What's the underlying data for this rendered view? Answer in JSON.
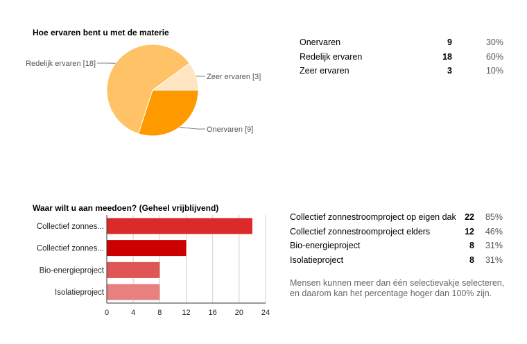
{
  "chart_data": [
    {
      "type": "pie",
      "title": "Hoe ervaren bent u met de materie",
      "slices": [
        {
          "label": "Onervaren [9]",
          "value": 9,
          "color": "#ff9900"
        },
        {
          "label": "Redelijk ervaren [18]",
          "value": 18,
          "color": "#ffc266"
        },
        {
          "label": "Zeer ervaren [3]",
          "value": 3,
          "color": "#ffe5c2"
        }
      ],
      "summary": [
        {
          "label": "Onervaren",
          "count": "9",
          "percent": "30%"
        },
        {
          "label": "Redelijk ervaren",
          "count": "18",
          "percent": "60%"
        },
        {
          "label": "Zeer ervaren",
          "count": "3",
          "percent": "10%"
        }
      ]
    },
    {
      "type": "bar",
      "orientation": "horizontal",
      "title": "Waar wilt u aan meedoen? (Geheel vrijblijvend)",
      "categories": [
        "Collectief zonnes...",
        "Collectief zonnes...",
        "Bio-energieproject",
        "Isolatieproject"
      ],
      "values": [
        22,
        12,
        8,
        8
      ],
      "colors": [
        "#dc2a2a",
        "#cc0000",
        "#e05555",
        "#e88080"
      ],
      "xlim": [
        0,
        24
      ],
      "xticks": [
        "0",
        "4",
        "8",
        "12",
        "16",
        "20",
        "24"
      ],
      "summary": [
        {
          "label": "Collectief zonnestroomproject op eigen dak",
          "count": "22",
          "percent": "85%"
        },
        {
          "label": "Collectief zonnestroomproject elders",
          "count": "12",
          "percent": "46%"
        },
        {
          "label": "Bio-energieproject",
          "count": "8",
          "percent": "31%"
        },
        {
          "label": "Isolatieproject",
          "count": "8",
          "percent": "31%"
        }
      ],
      "note": "Mensen kunnen meer dan één selectievakje selecteren, en daarom kan het percentage hoger dan 100% zijn."
    }
  ]
}
